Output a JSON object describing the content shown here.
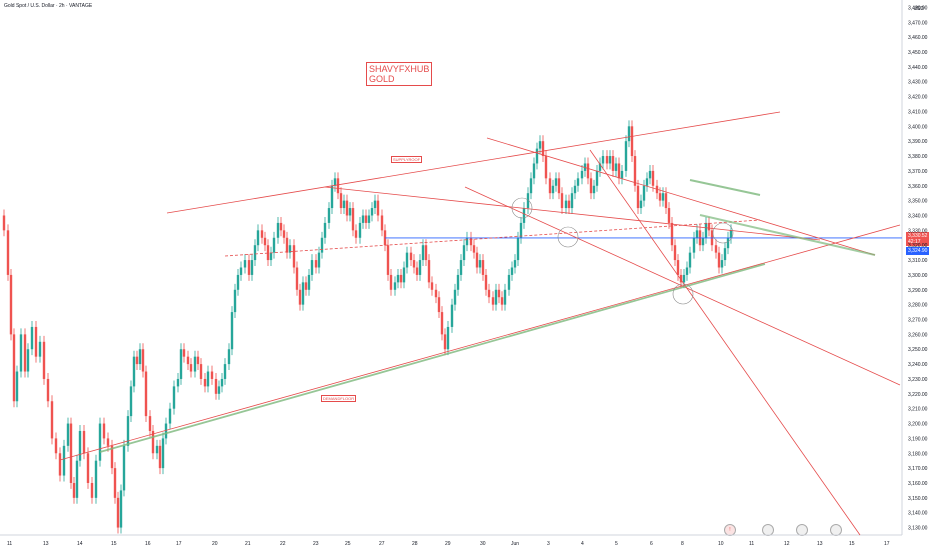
{
  "header": {
    "title": "Gold Spot / U.S. Dollar · 2h · VANTAGE"
  },
  "watermark": {
    "line1": "SHAVYFXHUB",
    "line2": "GOLD"
  },
  "labels": {
    "supply": "SUPPLYROOF",
    "demand": "DEMANDFLOOR"
  },
  "price_axis": {
    "unit": "USD",
    "last_price": "3,330.52",
    "countdown": "42:17",
    "line_price": "3,324.90"
  },
  "colors": {
    "up": "#26a69a",
    "down": "#ef5350",
    "trend_red": "#e54b4b",
    "trend_green": "#7cb87c",
    "hline_blue": "#2962ff"
  },
  "chart_data": {
    "type": "candlestick",
    "title": "Gold Spot / U.S. Dollar · 2h · VANTAGE",
    "ylim": [
      3125,
      3485
    ],
    "yticks": [
      3130,
      3140,
      3150,
      3160,
      3170,
      3180,
      3190,
      3200,
      3210,
      3220,
      3230,
      3240,
      3250,
      3260,
      3270,
      3280,
      3290,
      3300,
      3310,
      3320,
      3330,
      3340,
      3350,
      3360,
      3370,
      3380,
      3390,
      3400,
      3410,
      3420,
      3430,
      3440,
      3450,
      3460,
      3470,
      3480
    ],
    "xticks": [
      "11",
      "13",
      "14",
      "15",
      "16",
      "17",
      "20",
      "21",
      "22",
      "23",
      "25",
      "27",
      "28",
      "29",
      "30",
      "Jun",
      "3",
      "4",
      "5",
      "6",
      "8",
      "10",
      "11",
      "12",
      "13",
      "15",
      "17"
    ],
    "path": [
      [
        0,
        3340
      ],
      [
        4,
        3330
      ],
      [
        8,
        3300
      ],
      [
        11,
        3260
      ],
      [
        14,
        3215
      ],
      [
        17,
        3235
      ],
      [
        21,
        3260
      ],
      [
        25,
        3235
      ],
      [
        28,
        3250
      ],
      [
        32,
        3265
      ],
      [
        36,
        3245
      ],
      [
        40,
        3255
      ],
      [
        44,
        3230
      ],
      [
        48,
        3215
      ],
      [
        52,
        3190
      ],
      [
        56,
        3180
      ],
      [
        60,
        3165
      ],
      [
        64,
        3185
      ],
      [
        68,
        3200
      ],
      [
        71,
        3160
      ],
      [
        74,
        3150
      ],
      [
        77,
        3175
      ],
      [
        80,
        3195
      ],
      [
        84,
        3180
      ],
      [
        88,
        3160
      ],
      [
        92,
        3150
      ],
      [
        96,
        3175
      ],
      [
        100,
        3200
      ],
      [
        104,
        3190
      ],
      [
        108,
        3185
      ],
      [
        112,
        3170
      ],
      [
        115,
        3150
      ],
      [
        118,
        3130
      ],
      [
        121,
        3155
      ],
      [
        124,
        3185
      ],
      [
        128,
        3205
      ],
      [
        131,
        3225
      ],
      [
        134,
        3245
      ],
      [
        137,
        3240
      ],
      [
        140,
        3250
      ],
      [
        143,
        3235
      ],
      [
        146,
        3205
      ],
      [
        150,
        3195
      ],
      [
        153,
        3180
      ],
      [
        157,
        3185
      ],
      [
        160,
        3170
      ],
      [
        163,
        3190
      ],
      [
        166,
        3200
      ],
      [
        170,
        3210
      ],
      [
        174,
        3225
      ],
      [
        178,
        3230
      ],
      [
        181,
        3250
      ],
      [
        184,
        3245
      ],
      [
        188,
        3240
      ],
      [
        191,
        3235
      ],
      [
        195,
        3245
      ],
      [
        198,
        3240
      ],
      [
        201,
        3230
      ],
      [
        205,
        3225
      ],
      [
        208,
        3235
      ],
      [
        212,
        3230
      ],
      [
        216,
        3220
      ],
      [
        219,
        3225
      ],
      [
        222,
        3230
      ],
      [
        225,
        3240
      ],
      [
        229,
        3250
      ],
      [
        232,
        3275
      ],
      [
        235,
        3290
      ],
      [
        238,
        3300
      ],
      [
        241,
        3305
      ],
      [
        245,
        3310
      ],
      [
        249,
        3300
      ],
      [
        252,
        3310
      ],
      [
        255,
        3320
      ],
      [
        258,
        3330
      ],
      [
        262,
        3325
      ],
      [
        265,
        3320
      ],
      [
        268,
        3310
      ],
      [
        271,
        3315
      ],
      [
        274,
        3325
      ],
      [
        278,
        3335
      ],
      [
        281,
        3330
      ],
      [
        284,
        3325
      ],
      [
        287,
        3315
      ],
      [
        290,
        3320
      ],
      [
        294,
        3305
      ],
      [
        297,
        3290
      ],
      [
        300,
        3280
      ],
      [
        303,
        3295
      ],
      [
        306,
        3290
      ],
      [
        309,
        3300
      ],
      [
        312,
        3310
      ],
      [
        316,
        3305
      ],
      [
        319,
        3315
      ],
      [
        322,
        3325
      ],
      [
        325,
        3335
      ],
      [
        329,
        3345
      ],
      [
        332,
        3360
      ],
      [
        335,
        3365
      ],
      [
        338,
        3355
      ],
      [
        341,
        3345
      ],
      [
        344,
        3350
      ],
      [
        347,
        3340
      ],
      [
        350,
        3345
      ],
      [
        353,
        3330
      ],
      [
        356,
        3325
      ],
      [
        360,
        3335
      ],
      [
        363,
        3340
      ],
      [
        366,
        3335
      ],
      [
        369,
        3340
      ],
      [
        372,
        3345
      ],
      [
        375,
        3350
      ],
      [
        378,
        3340
      ],
      [
        382,
        3330
      ],
      [
        385,
        3320
      ],
      [
        388,
        3300
      ],
      [
        391,
        3290
      ],
      [
        395,
        3295
      ],
      [
        398,
        3300
      ],
      [
        401,
        3295
      ],
      [
        404,
        3305
      ],
      [
        407,
        3315
      ],
      [
        411,
        3310
      ],
      [
        414,
        3305
      ],
      [
        417,
        3300
      ],
      [
        420,
        3310
      ],
      [
        423,
        3320
      ],
      [
        426,
        3310
      ],
      [
        429,
        3295
      ],
      [
        432,
        3290
      ],
      [
        436,
        3285
      ],
      [
        439,
        3275
      ],
      [
        442,
        3260
      ],
      [
        445,
        3250
      ],
      [
        448,
        3265
      ],
      [
        452,
        3280
      ],
      [
        455,
        3290
      ],
      [
        458,
        3300
      ],
      [
        461,
        3310
      ],
      [
        464,
        3320
      ],
      [
        467,
        3325
      ],
      [
        471,
        3320
      ],
      [
        474,
        3315
      ],
      [
        477,
        3305
      ],
      [
        480,
        3310
      ],
      [
        483,
        3300
      ],
      [
        486,
        3290
      ],
      [
        489,
        3285
      ],
      [
        493,
        3280
      ],
      [
        496,
        3290
      ],
      [
        499,
        3285
      ],
      [
        502,
        3280
      ],
      [
        505,
        3290
      ],
      [
        509,
        3300
      ],
      [
        512,
        3305
      ],
      [
        515,
        3310
      ],
      [
        518,
        3325
      ],
      [
        521,
        3335
      ],
      [
        524,
        3345
      ],
      [
        528,
        3355
      ],
      [
        531,
        3365
      ],
      [
        534,
        3375
      ],
      [
        537,
        3385
      ],
      [
        540,
        3390
      ],
      [
        543,
        3380
      ],
      [
        546,
        3365
      ],
      [
        550,
        3355
      ],
      [
        553,
        3360
      ],
      [
        556,
        3365
      ],
      [
        559,
        3355
      ],
      [
        562,
        3345
      ],
      [
        566,
        3350
      ],
      [
        569,
        3345
      ],
      [
        572,
        3355
      ],
      [
        575,
        3360
      ],
      [
        578,
        3365
      ],
      [
        582,
        3370
      ],
      [
        585,
        3375
      ],
      [
        588,
        3365
      ],
      [
        591,
        3355
      ],
      [
        594,
        3360
      ],
      [
        597,
        3370
      ],
      [
        600,
        3375
      ],
      [
        603,
        3380
      ],
      [
        607,
        3375
      ],
      [
        610,
        3380
      ],
      [
        613,
        3370
      ],
      [
        616,
        3375
      ],
      [
        619,
        3365
      ],
      [
        622,
        3370
      ],
      [
        626,
        3390
      ],
      [
        629,
        3400
      ],
      [
        632,
        3380
      ],
      [
        635,
        3360
      ],
      [
        638,
        3345
      ],
      [
        641,
        3350
      ],
      [
        644,
        3360
      ],
      [
        647,
        3365
      ],
      [
        650,
        3370
      ],
      [
        653,
        3360
      ],
      [
        657,
        3355
      ],
      [
        660,
        3350
      ],
      [
        663,
        3355
      ],
      [
        666,
        3345
      ],
      [
        669,
        3335
      ],
      [
        672,
        3320
      ],
      [
        675,
        3310
      ],
      [
        678,
        3300
      ],
      [
        681,
        3295
      ],
      [
        684,
        3300
      ],
      [
        687,
        3305
      ],
      [
        690,
        3315
      ],
      [
        694,
        3325
      ],
      [
        697,
        3330
      ],
      [
        700,
        3320
      ],
      [
        703,
        3325
      ],
      [
        706,
        3335
      ],
      [
        709,
        3330
      ],
      [
        712,
        3320
      ],
      [
        716,
        3315
      ],
      [
        719,
        3305
      ],
      [
        722,
        3310
      ],
      [
        725,
        3318
      ],
      [
        728,
        3325
      ],
      [
        731,
        3330
      ]
    ]
  }
}
